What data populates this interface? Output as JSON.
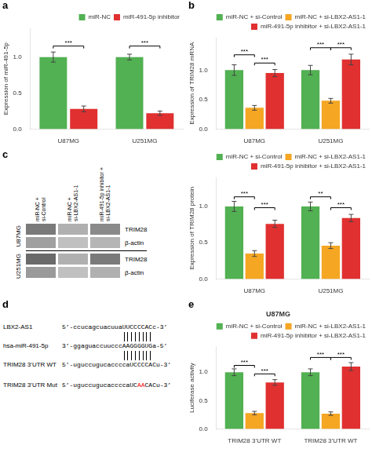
{
  "chart_data": [
    {
      "type": "bar",
      "ylabel": "Expression of miR-491-5p",
      "categories": [
        "U87MG",
        "U251MG"
      ],
      "series": [
        {
          "name": "miR-NC",
          "color": "#52b152",
          "values": [
            1.0,
            1.0
          ],
          "errors": [
            0.07,
            0.04
          ]
        },
        {
          "name": "miR-491-5p inhibitor",
          "color": "#e03030",
          "values": [
            0.28,
            0.22
          ],
          "errors": [
            0.04,
            0.03
          ]
        }
      ],
      "ylim": [
        0,
        1.4
      ],
      "yticks": [
        {
          "value": 0.0,
          "label": "0.0"
        },
        0.5,
        {
          "value": 1.0,
          "label": "1.0"
        }
      ],
      "grid": false,
      "legend": "upper right",
      "annotations": [
        {
          "text": "a"
        },
        {
          "text": "***",
          "x": 0,
          "series": [
            "miR-NC",
            "miR-491-5p inhibitor"
          ],
          "y": 1.12
        },
        {
          "text": "***",
          "x": 1,
          "series": [
            "miR-NC",
            "miR-491-5p inhibitor"
          ],
          "y": 1.12
        }
      ]
    },
    {
      "type": "bar",
      "ylabel": "Expression of TRIM28 mRNA",
      "categories": [
        "U87MG",
        "U251MG"
      ],
      "series": [
        {
          "name": "miR-NC + si-Control",
          "color": "#52b152",
          "values": [
            1.0,
            1.0
          ],
          "errors": [
            0.09,
            0.08
          ]
        },
        {
          "name": "miR-NC + si-LBX2-AS1-1",
          "color": "#f5a623",
          "values": [
            0.36,
            0.48
          ],
          "errors": [
            0.04,
            0.04
          ]
        },
        {
          "name": "miR-491-5p inhibitor + si-LBX2-AS1-1",
          "color": "#e03030",
          "values": [
            0.95,
            1.18
          ],
          "errors": [
            0.06,
            0.09
          ]
        }
      ],
      "ylim": [
        0,
        1.55
      ],
      "yticks": [
        {
          "value": 0.0,
          "label": "0.0"
        },
        0.5,
        {
          "value": 1.0,
          "label": "1.0"
        }
      ],
      "grid": false,
      "legend": "upper right",
      "annotations": [
        {
          "text": "b"
        },
        {
          "text": "***",
          "x": 0,
          "series": [
            "miR-NC + si-Control",
            "miR-NC + si-LBX2-AS1-1"
          ],
          "y": 1.22
        },
        {
          "text": "***",
          "x": 0,
          "series": [
            "miR-NC + si-LBX2-AS1-1",
            "miR-491-5p inhibitor + si-LBX2-AS1-1"
          ],
          "y": 1.08
        },
        {
          "text": "***",
          "x": 1,
          "series": [
            "miR-NC + si-Control",
            "miR-NC + si-LBX2-AS1-1"
          ],
          "y": 1.34
        },
        {
          "text": "***",
          "x": 1,
          "series": [
            "miR-NC + si-LBX2-AS1-1",
            "miR-491-5p inhibitor + si-LBX2-AS1-1"
          ],
          "y": 1.34
        }
      ]
    },
    {
      "type": "blot",
      "categories": [
        "miR-NC +\nsi-Control",
        "miR-NC +\nsi-LBX2-AS1-1",
        "miR-491-5p inhibitor +\nsi-LBX2-AS1-1"
      ],
      "groups": [
        {
          "name": "U87MG",
          "series": [
            {
              "name": "TRIM28",
              "colors": [
                "#7a7a7a",
                "#b0b0b0",
                "#8a8a8a"
              ]
            },
            {
              "name": "β-actin",
              "colors": [
                "#a0a0a0",
                "#c0c0c0",
                "#b5b5b5"
              ]
            }
          ]
        },
        {
          "name": "U251MG",
          "series": [
            {
              "name": "TRIM28",
              "colors": [
                "#6a6a6a",
                "#b0b0b0",
                "#7a7a7a"
              ]
            },
            {
              "name": "β-actin",
              "colors": [
                "#9a9a9a",
                "#c0c0c0",
                "#b0b0b0"
              ]
            }
          ]
        }
      ],
      "annotations": [
        {
          "text": "c"
        }
      ]
    },
    {
      "type": "bar",
      "ylabel": "Expression of TRIM28 protein",
      "categories": [
        "U87MG",
        "U251MG"
      ],
      "series": [
        {
          "name": "miR-NC + si-Control",
          "color": "#52b152",
          "values": [
            1.0,
            1.0
          ],
          "errors": [
            0.07,
            0.06
          ]
        },
        {
          "name": "miR-NC + si-LBX2-AS1-1",
          "color": "#f5a623",
          "values": [
            0.35,
            0.46
          ],
          "errors": [
            0.04,
            0.04
          ]
        },
        {
          "name": "miR-491-5p inhibitor + si-LBX2-AS1-1",
          "color": "#e03030",
          "values": [
            0.76,
            0.84
          ],
          "errors": [
            0.05,
            0.05
          ]
        }
      ],
      "ylim": [
        0,
        1.4
      ],
      "yticks": [
        {
          "value": 0.0,
          "label": "0.0"
        },
        0.5,
        {
          "value": 1.0,
          "label": "1.0"
        }
      ],
      "grid": false,
      "legend": "upper right",
      "annotations": [
        {
          "text": "***",
          "x": 0,
          "series": [
            "miR-NC + si-Control",
            "miR-NC + si-LBX2-AS1-1"
          ],
          "y": 1.1
        },
        {
          "text": "***",
          "x": 0,
          "series": [
            "miR-NC + si-LBX2-AS1-1",
            "miR-491-5p inhibitor + si-LBX2-AS1-1"
          ],
          "y": 0.95
        },
        {
          "text": "**",
          "x": 1,
          "series": [
            "miR-NC + si-Control",
            "miR-NC + si-LBX2-AS1-1"
          ],
          "y": 1.1
        },
        {
          "text": "***",
          "x": 1,
          "series": [
            "miR-NC + si-LBX2-AS1-1",
            "miR-491-5p inhibitor + si-LBX2-AS1-1"
          ],
          "y": 0.95
        }
      ]
    },
    {
      "type": "sequence",
      "series": [
        {
          "name": "LBX2-AS1",
          "text": "5’-ccucagcuacuuaUUCCCCACc-3’"
        },
        {
          "name": "hsa-miR-491-5p",
          "text": "3’-ggaguaccuucccAAGGGGUGa-5’"
        },
        {
          "name": "TRIM28 3’UTR WT",
          "text": "5’-uguccugucaccccaUCCCCACu-3’"
        },
        {
          "name": "TRIM28 3’UTR Mut",
          "parts": [
            {
              "text": "5’-uguccugucaccccaUC",
              "color": "black"
            },
            {
              "text": "AA",
              "color": "red"
            },
            {
              "text": "CACu-3’",
              "color": "black"
            }
          ]
        }
      ],
      "binding_lines": 8,
      "annotations": [
        {
          "text": "d"
        }
      ]
    },
    {
      "type": "bar",
      "title": "U87MG",
      "ylabel": "Luciferase activity",
      "categories": [
        "TRIM28 3’UTR WT",
        "TRIM28 3’UTR WT"
      ],
      "series": [
        {
          "name": "miR-NC + si-Control",
          "color": "#52b152",
          "values": [
            1.0,
            1.0
          ],
          "errors": [
            0.06,
            0.06
          ]
        },
        {
          "name": "miR-NC + si-LBX2-AS1-1",
          "color": "#f5a623",
          "values": [
            0.28,
            0.27
          ],
          "errors": [
            0.03,
            0.03
          ]
        },
        {
          "name": "miR-491-5p inhibitor + si-LBX2-AS1-1",
          "color": "#e03030",
          "values": [
            0.82,
            1.1
          ],
          "errors": [
            0.05,
            0.07
          ]
        }
      ],
      "ylim": [
        0,
        1.45
      ],
      "yticks": [
        {
          "value": 0.0,
          "label": "0.0"
        },
        0.5,
        {
          "value": 1.0,
          "label": "1.0"
        }
      ],
      "grid": false,
      "legend": "upper right",
      "annotations": [
        {
          "text": "e"
        },
        {
          "text": "***",
          "x": 0,
          "series": [
            "miR-NC + si-Control",
            "miR-NC + si-LBX2-AS1-1"
          ],
          "y": 1.08
        },
        {
          "text": "***",
          "x": 0,
          "series": [
            "miR-NC + si-LBX2-AS1-1",
            "miR-491-5p inhibitor + si-LBX2-AS1-1"
          ],
          "y": 0.93
        },
        {
          "text": "***",
          "x": 1,
          "series": [
            "miR-NC + si-Control",
            "miR-NC + si-LBX2-AS1-1"
          ],
          "y": 1.22
        },
        {
          "text": "***",
          "x": 1,
          "series": [
            "miR-NC + si-LBX2-AS1-1",
            "miR-491-5p inhibitor + si-LBX2-AS1-1"
          ],
          "y": 1.22
        }
      ]
    }
  ]
}
